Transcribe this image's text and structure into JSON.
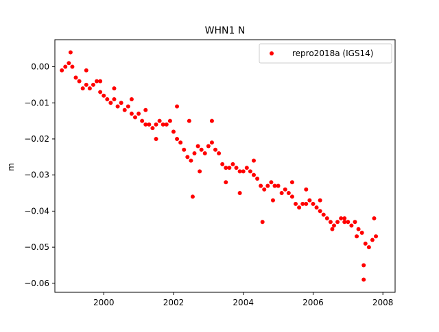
{
  "chart_data": {
    "type": "scatter",
    "title": "WHN1 N",
    "xlabel": "",
    "ylabel": "m",
    "xlim": [
      1998.6,
      2008.35
    ],
    "ylim": [
      -0.0625,
      0.0075
    ],
    "x_ticks": [
      2000,
      2002,
      2004,
      2006,
      2008
    ],
    "x_tick_labels": [
      "2000",
      "2002",
      "2004",
      "2006",
      "2008"
    ],
    "y_ticks": [
      0.0,
      -0.01,
      -0.02,
      -0.03,
      -0.04,
      -0.05,
      -0.06
    ],
    "y_tick_labels": [
      "0.00",
      "−0.01",
      "−0.02",
      "−0.03",
      "−0.04",
      "−0.05",
      "−0.06"
    ],
    "grid": false,
    "legend_position": "top-right",
    "series": [
      {
        "name": "repro2018a (IGS14)",
        "color": "#ff0000",
        "marker": "circle",
        "x": [
          1998.8,
          1998.9,
          1999.0,
          1999.1,
          1999.2,
          1999.3,
          1999.4,
          1999.5,
          1999.6,
          1999.7,
          1999.8,
          1999.9,
          2000.0,
          2000.1,
          2000.2,
          2000.3,
          2000.4,
          2000.5,
          2000.6,
          2000.7,
          2000.8,
          2000.9,
          2001.0,
          2001.1,
          2001.2,
          2001.3,
          2001.4,
          2001.5,
          2001.6,
          2001.7,
          2001.8,
          2001.9,
          2002.0,
          2002.1,
          2002.2,
          2002.3,
          2002.4,
          2002.5,
          2002.6,
          2002.7,
          2002.8,
          2002.9,
          2003.0,
          2003.1,
          2003.2,
          2003.3,
          2003.4,
          2003.5,
          2003.6,
          2003.7,
          2003.8,
          2003.9,
          2004.0,
          2004.1,
          2004.2,
          2004.3,
          2004.4,
          2004.5,
          2004.6,
          2004.7,
          2004.8,
          2004.9,
          2005.0,
          2005.1,
          2005.2,
          2005.3,
          2005.4,
          2005.5,
          2005.6,
          2005.7,
          2005.8,
          2005.9,
          2006.0,
          2006.1,
          2006.2,
          2006.3,
          2006.4,
          2006.5,
          2006.6,
          2006.7,
          2006.8,
          2006.9,
          2007.0,
          2007.1,
          2007.2,
          2007.3,
          2007.4,
          2007.5,
          2007.6,
          2007.7,
          2007.8,
          1999.05,
          1999.5,
          1999.9,
          2000.3,
          2000.8,
          2001.2,
          2001.5,
          2002.1,
          2002.45,
          2002.55,
          2002.75,
          2003.1,
          2003.5,
          2003.9,
          2004.3,
          2004.55,
          2004.85,
          2005.4,
          2005.8,
          2006.2,
          2006.55,
          2006.9,
          2007.25,
          2007.45,
          2007.45,
          2007.75
        ],
        "y": [
          -0.001,
          0.0,
          0.001,
          0.0,
          -0.003,
          -0.004,
          -0.006,
          -0.005,
          -0.006,
          -0.005,
          -0.004,
          -0.007,
          -0.008,
          -0.009,
          -0.01,
          -0.009,
          -0.011,
          -0.01,
          -0.012,
          -0.011,
          -0.013,
          -0.014,
          -0.013,
          -0.015,
          -0.016,
          -0.016,
          -0.017,
          -0.016,
          -0.015,
          -0.016,
          -0.016,
          -0.015,
          -0.018,
          -0.02,
          -0.021,
          -0.023,
          -0.025,
          -0.026,
          -0.024,
          -0.022,
          -0.023,
          -0.024,
          -0.022,
          -0.021,
          -0.023,
          -0.024,
          -0.027,
          -0.028,
          -0.028,
          -0.027,
          -0.028,
          -0.029,
          -0.029,
          -0.028,
          -0.029,
          -0.03,
          -0.031,
          -0.033,
          -0.034,
          -0.033,
          -0.032,
          -0.033,
          -0.033,
          -0.035,
          -0.034,
          -0.035,
          -0.036,
          -0.038,
          -0.039,
          -0.038,
          -0.038,
          -0.037,
          -0.038,
          -0.039,
          -0.04,
          -0.041,
          -0.042,
          -0.043,
          -0.044,
          -0.043,
          -0.042,
          -0.043,
          -0.043,
          -0.044,
          -0.043,
          -0.045,
          -0.046,
          -0.049,
          -0.05,
          -0.048,
          -0.047,
          0.004,
          -0.001,
          -0.004,
          -0.006,
          -0.009,
          -0.012,
          -0.02,
          -0.011,
          -0.015,
          -0.036,
          -0.029,
          -0.015,
          -0.032,
          -0.035,
          -0.026,
          -0.043,
          -0.037,
          -0.032,
          -0.034,
          -0.037,
          -0.045,
          -0.042,
          -0.047,
          -0.055,
          -0.059,
          -0.042
        ]
      }
    ]
  }
}
